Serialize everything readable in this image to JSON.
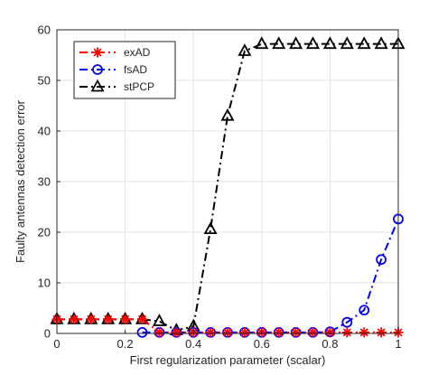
{
  "chart_data": {
    "type": "line",
    "title": "",
    "xlabel": "First regularization parameter (scalar)",
    "ylabel": "Faulty antennas detection error",
    "xlim": [
      0,
      1
    ],
    "ylim": [
      0,
      60
    ],
    "xticks": [
      0,
      0.2,
      0.4,
      0.6,
      0.8,
      1
    ],
    "xtick_labels": [
      "0",
      "0.2",
      "0.4",
      "0.6",
      "0.8",
      "1"
    ],
    "yticks": [
      0,
      10,
      20,
      30,
      40,
      50,
      60
    ],
    "ytick_labels": [
      "0",
      "10",
      "20",
      "30",
      "40",
      "50",
      "60"
    ],
    "grid": true,
    "legend_position": "top-left",
    "series": [
      {
        "name": "exAD",
        "color": "#ff0000",
        "line_style": "dash-dot",
        "marker": "asterisk",
        "x": [
          0,
          0.05,
          0.1,
          0.15,
          0.2,
          0.25,
          0.3,
          0.35,
          0.4,
          0.45,
          0.5,
          0.55,
          0.6,
          0.65,
          0.7,
          0.75,
          0.8,
          0.85,
          0.9,
          0.95,
          1.0
        ],
        "y": [
          2.8,
          2.8,
          2.8,
          2.8,
          2.8,
          2.8,
          0.2,
          0.2,
          0.2,
          0.2,
          0.2,
          0.2,
          0.2,
          0.2,
          0.2,
          0.2,
          0.2,
          0.2,
          0.2,
          0.2,
          0.2
        ]
      },
      {
        "name": "fsAD",
        "color": "#0000ff",
        "line_style": "dash-dot",
        "marker": "circle",
        "x": [
          0.25,
          0.3,
          0.35,
          0.4,
          0.45,
          0.5,
          0.55,
          0.6,
          0.65,
          0.7,
          0.75,
          0.8,
          0.85,
          0.9,
          0.95,
          1.0
        ],
        "y": [
          0.2,
          0.2,
          0.2,
          0.2,
          0.2,
          0.2,
          0.2,
          0.2,
          0.2,
          0.2,
          0.2,
          0.3,
          2.2,
          4.6,
          14.6,
          22.6
        ]
      },
      {
        "name": "stPCP",
        "color": "#000000",
        "line_style": "dash-dot",
        "marker": "triangle",
        "x": [
          0,
          0.05,
          0.1,
          0.15,
          0.2,
          0.25,
          0.3,
          0.35,
          0.4,
          0.45,
          0.5,
          0.55,
          0.6,
          0.65,
          0.7,
          0.75,
          0.8,
          0.85,
          0.9,
          0.95,
          1.0
        ],
        "y": [
          2.8,
          2.8,
          2.8,
          2.8,
          2.8,
          2.8,
          2.4,
          0.6,
          1.4,
          20.6,
          43.0,
          55.8,
          57.2,
          57.2,
          57.2,
          57.2,
          57.2,
          57.2,
          57.2,
          57.2,
          57.2
        ]
      }
    ]
  }
}
